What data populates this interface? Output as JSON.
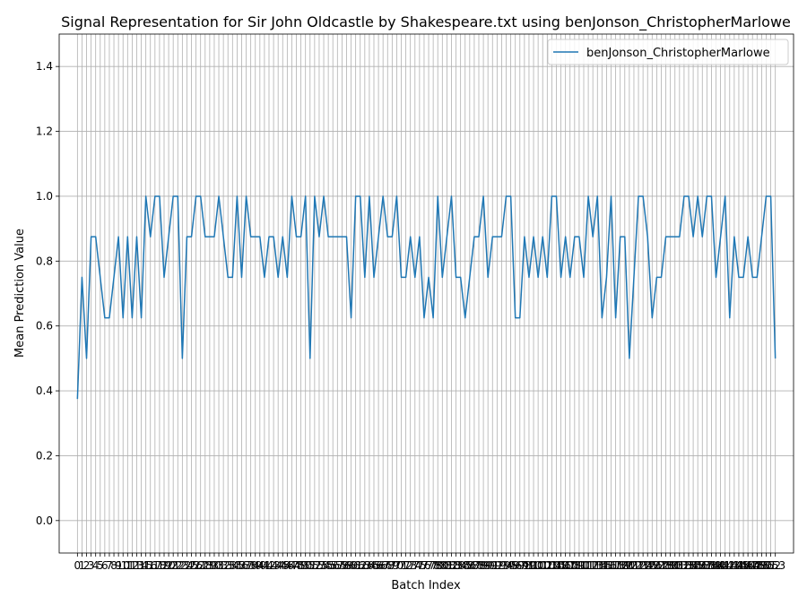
{
  "chart_data": {
    "type": "line",
    "title": "Signal Representation for Sir John Oldcastle by Shakespeare.txt using benJonson_ChristopherMarlowe",
    "xlabel": "Batch Index",
    "ylabel": "Mean Prediction Value",
    "ylim": [
      -0.1,
      1.5
    ],
    "xlim": [
      -4,
      157
    ],
    "grid": true,
    "legend_position": "top-right",
    "y_ticks": [
      0.0,
      0.2,
      0.4,
      0.6,
      0.8,
      1.0,
      1.2,
      1.4
    ],
    "series": [
      {
        "name": "benJonson_ChristopherMarlowe",
        "color": "#1f77b4",
        "x": [
          0,
          1,
          2,
          3,
          4,
          5,
          6,
          7,
          8,
          9,
          10,
          11,
          12,
          13,
          14,
          15,
          16,
          17,
          18,
          19,
          20,
          21,
          22,
          23,
          24,
          25,
          26,
          27,
          28,
          29,
          30,
          31,
          32,
          33,
          34,
          35,
          36,
          37,
          38,
          39,
          40,
          41,
          42,
          43,
          44,
          45,
          46,
          47,
          48,
          49,
          50,
          51,
          52,
          53,
          54,
          55,
          56,
          57,
          58,
          59,
          60,
          61,
          62,
          63,
          64,
          65,
          66,
          67,
          68,
          69,
          70,
          71,
          72,
          73,
          74,
          75,
          76,
          77,
          78,
          79,
          80,
          81,
          82,
          83,
          84,
          85,
          86,
          87,
          88,
          89,
          90,
          91,
          92,
          93,
          94,
          95,
          96,
          97,
          98,
          99,
          100,
          101,
          102,
          103,
          104,
          105,
          106,
          107,
          108,
          109,
          110,
          111,
          112,
          113,
          114,
          115,
          116,
          117,
          118,
          119,
          120,
          121,
          122,
          123,
          124,
          125,
          126,
          127,
          128,
          129,
          130,
          131,
          132,
          133,
          134,
          135,
          136,
          137,
          138,
          139,
          140,
          141,
          142,
          143,
          144,
          145,
          146,
          147,
          148,
          149,
          150,
          151,
          152,
          153
        ],
        "values": [
          0.375,
          0.75,
          0.5,
          0.875,
          0.875,
          0.75,
          0.625,
          0.625,
          0.75,
          0.875,
          0.625,
          0.875,
          0.625,
          0.875,
          0.625,
          1.0,
          0.875,
          1.0,
          1.0,
          0.75,
          0.875,
          1.0,
          1.0,
          0.5,
          0.875,
          0.875,
          1.0,
          1.0,
          0.875,
          0.875,
          0.875,
          1.0,
          0.875,
          0.75,
          0.75,
          1.0,
          0.75,
          1.0,
          0.875,
          0.875,
          0.875,
          0.75,
          0.875,
          0.875,
          0.75,
          0.875,
          0.75,
          1.0,
          0.875,
          0.875,
          1.0,
          0.5,
          1.0,
          0.875,
          1.0,
          0.875,
          0.875,
          0.875,
          0.875,
          0.875,
          0.625,
          1.0,
          1.0,
          0.75,
          1.0,
          0.75,
          0.875,
          1.0,
          0.875,
          0.875,
          1.0,
          0.75,
          0.75,
          0.875,
          0.75,
          0.875,
          0.625,
          0.75,
          0.625,
          1.0,
          0.75,
          0.875,
          1.0,
          0.75,
          0.75,
          0.625,
          0.75,
          0.875,
          0.875,
          1.0,
          0.75,
          0.875,
          0.875,
          0.875,
          1.0,
          1.0,
          0.625,
          0.625,
          0.875,
          0.75,
          0.875,
          0.75,
          0.875,
          0.75,
          1.0,
          1.0,
          0.75,
          0.875,
          0.75,
          0.875,
          0.875,
          0.75,
          1.0,
          0.875,
          1.0,
          0.625,
          0.75,
          1.0,
          0.625,
          0.875,
          0.875,
          0.5,
          0.75,
          1.0,
          1.0,
          0.875,
          0.625,
          0.75,
          0.75,
          0.875,
          0.875,
          0.875,
          0.875,
          1.0,
          1.0,
          0.875,
          1.0,
          0.875,
          1.0,
          1.0,
          0.75,
          0.875,
          1.0,
          0.625,
          0.875,
          0.75,
          0.75,
          0.875,
          0.75,
          0.75,
          0.875,
          1.0,
          1.0,
          0.5
        ]
      }
    ],
    "x_tick_labels": [
      "0",
      "1",
      "2",
      "3",
      "4",
      "5",
      "6",
      "7",
      "8",
      "9",
      "10",
      "11",
      "12",
      "13",
      "14",
      "15",
      "16",
      "17",
      "18",
      "19",
      "20",
      "21",
      "22",
      "23",
      "24",
      "25",
      "26",
      "27",
      "28",
      "29",
      "30",
      "31",
      "32",
      "33",
      "34",
      "35",
      "36",
      "37",
      "38",
      "39",
      "40",
      "41",
      "42",
      "43",
      "44",
      "45",
      "46",
      "47",
      "48",
      "49",
      "50",
      "51",
      "52",
      "53",
      "54",
      "55",
      "56",
      "57",
      "58",
      "59",
      "60",
      "61",
      "62",
      "63",
      "64",
      "65",
      "66",
      "67",
      "68",
      "69",
      "70",
      "71",
      "72",
      "73",
      "74",
      "75",
      "76",
      "77",
      "78",
      "79",
      "80",
      "81",
      "82",
      "83",
      "84",
      "85",
      "86",
      "87",
      "88",
      "89",
      "90",
      "91",
      "92",
      "93",
      "94",
      "95",
      "96",
      "97",
      "98",
      "99",
      "100",
      "101",
      "102",
      "103",
      "104",
      "105",
      "106",
      "107",
      "108",
      "109",
      "110",
      "111",
      "112",
      "113",
      "114",
      "115",
      "116",
      "117",
      "118",
      "119",
      "120",
      "121",
      "122",
      "123",
      "124",
      "125",
      "126",
      "127",
      "128",
      "129",
      "130",
      "131",
      "132",
      "133",
      "134",
      "135",
      "136",
      "137",
      "138",
      "139",
      "140",
      "141",
      "142",
      "143",
      "144",
      "145",
      "146",
      "147",
      "148",
      "149",
      "150",
      "151",
      "152",
      "153"
    ]
  }
}
